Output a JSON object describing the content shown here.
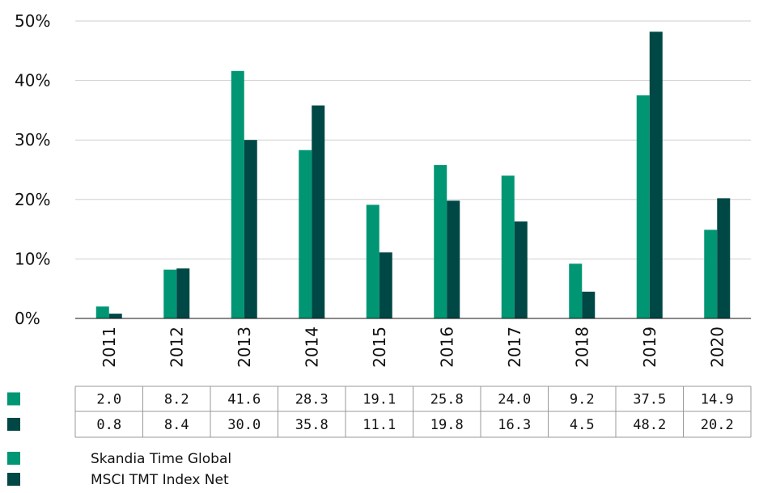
{
  "chart_data": {
    "type": "bar",
    "categories": [
      "2011",
      "2012",
      "2013",
      "2014",
      "2015",
      "2016",
      "2017",
      "2018",
      "2019",
      "2020"
    ],
    "series": [
      {
        "name": "Skandia Time Global",
        "color": "#009673",
        "values": [
          2.0,
          8.2,
          41.6,
          28.3,
          19.1,
          25.8,
          24.0,
          9.2,
          37.5,
          14.9
        ],
        "labels": [
          "2.0",
          "8.2",
          "41.6",
          "28.3",
          "19.1",
          "25.8",
          "24.0",
          "9.2",
          "37.5",
          "14.9"
        ]
      },
      {
        "name": "MSCI TMT Index Net",
        "color": "#004846",
        "values": [
          0.8,
          8.4,
          30.0,
          35.8,
          11.1,
          19.8,
          16.3,
          4.5,
          48.2,
          20.2
        ],
        "labels": [
          "0.8",
          "8.4",
          "30.0",
          "35.8",
          "11.1",
          "19.8",
          "16.3",
          "4.5",
          "48.2",
          "20.2"
        ]
      }
    ],
    "yticks": [
      "0%",
      "10%",
      "20%",
      "30%",
      "40%",
      "50%"
    ],
    "ylim": [
      0,
      50
    ],
    "grid": true,
    "legend": "bottom-left",
    "title": "",
    "xlabel": "",
    "ylabel": ""
  }
}
